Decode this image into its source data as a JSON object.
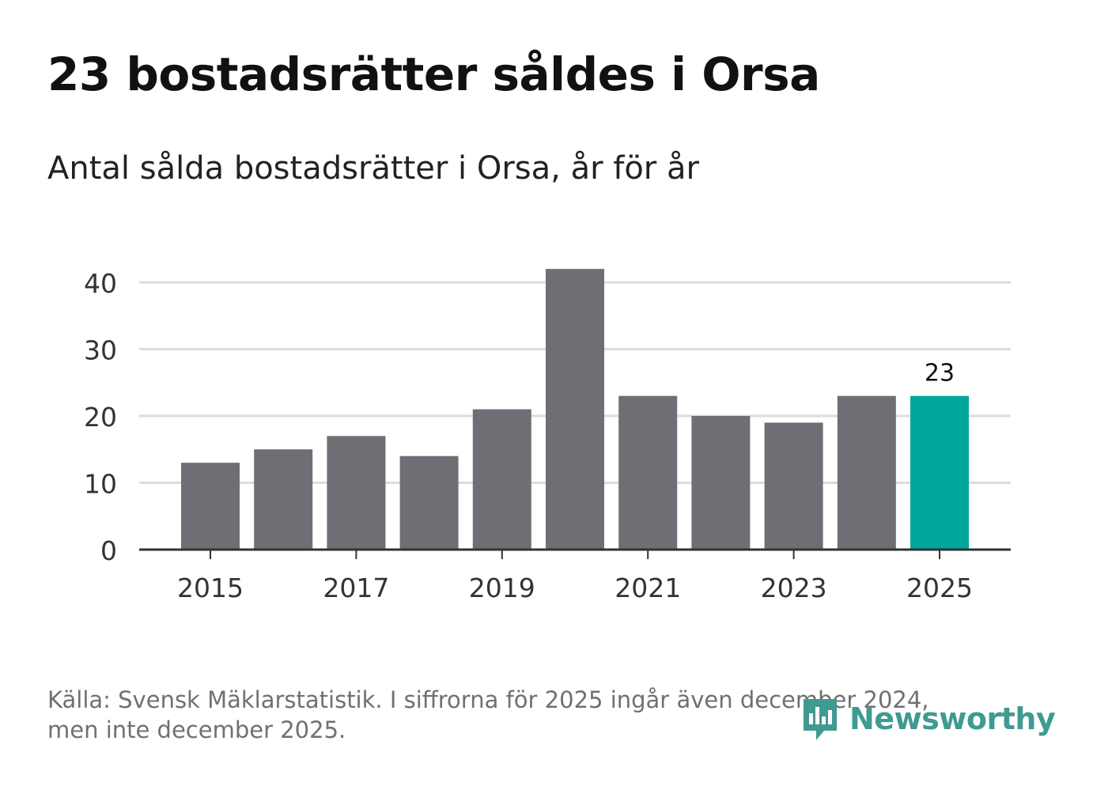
{
  "title": "23 bostadsrätter såldes i Orsa",
  "subtitle": "Antal sålda bostadsrätter i Orsa, år för år",
  "footer": {
    "source_line1": "Källa: Svensk Mäklarstatistik. I siffrorna för 2025 ingår även december 2024,",
    "source_line2": "men inte december 2025."
  },
  "logo": {
    "text": "Newsworthy",
    "icon": "newsworthy-logo-icon"
  },
  "colors": {
    "bar": "#6f6e74",
    "highlight": "#00a69c",
    "grid": "#dcdcdc",
    "axis": "#333333",
    "tick_text": "#333333",
    "logo": "#3f9a92"
  },
  "chart_data": {
    "type": "bar",
    "title": "23 bostadsrätter såldes i Orsa",
    "subtitle": "Antal sålda bostadsrätter i Orsa, år för år",
    "xlabel": "",
    "ylabel": "",
    "categories": [
      "2015",
      "2016",
      "2017",
      "2018",
      "2019",
      "2020",
      "2021",
      "2022",
      "2023",
      "2024",
      "2025"
    ],
    "values": [
      13,
      15,
      17,
      14,
      21,
      42,
      23,
      20,
      19,
      23,
      23
    ],
    "highlight_index": 10,
    "data_labels": [
      {
        "index": 10,
        "text": "23"
      }
    ],
    "x_tick_labels": [
      "2015",
      "2017",
      "2019",
      "2021",
      "2023",
      "2025"
    ],
    "y_ticks": [
      0,
      10,
      20,
      30,
      40
    ],
    "ylim": [
      0,
      45
    ],
    "grid": true,
    "legend": "none"
  }
}
